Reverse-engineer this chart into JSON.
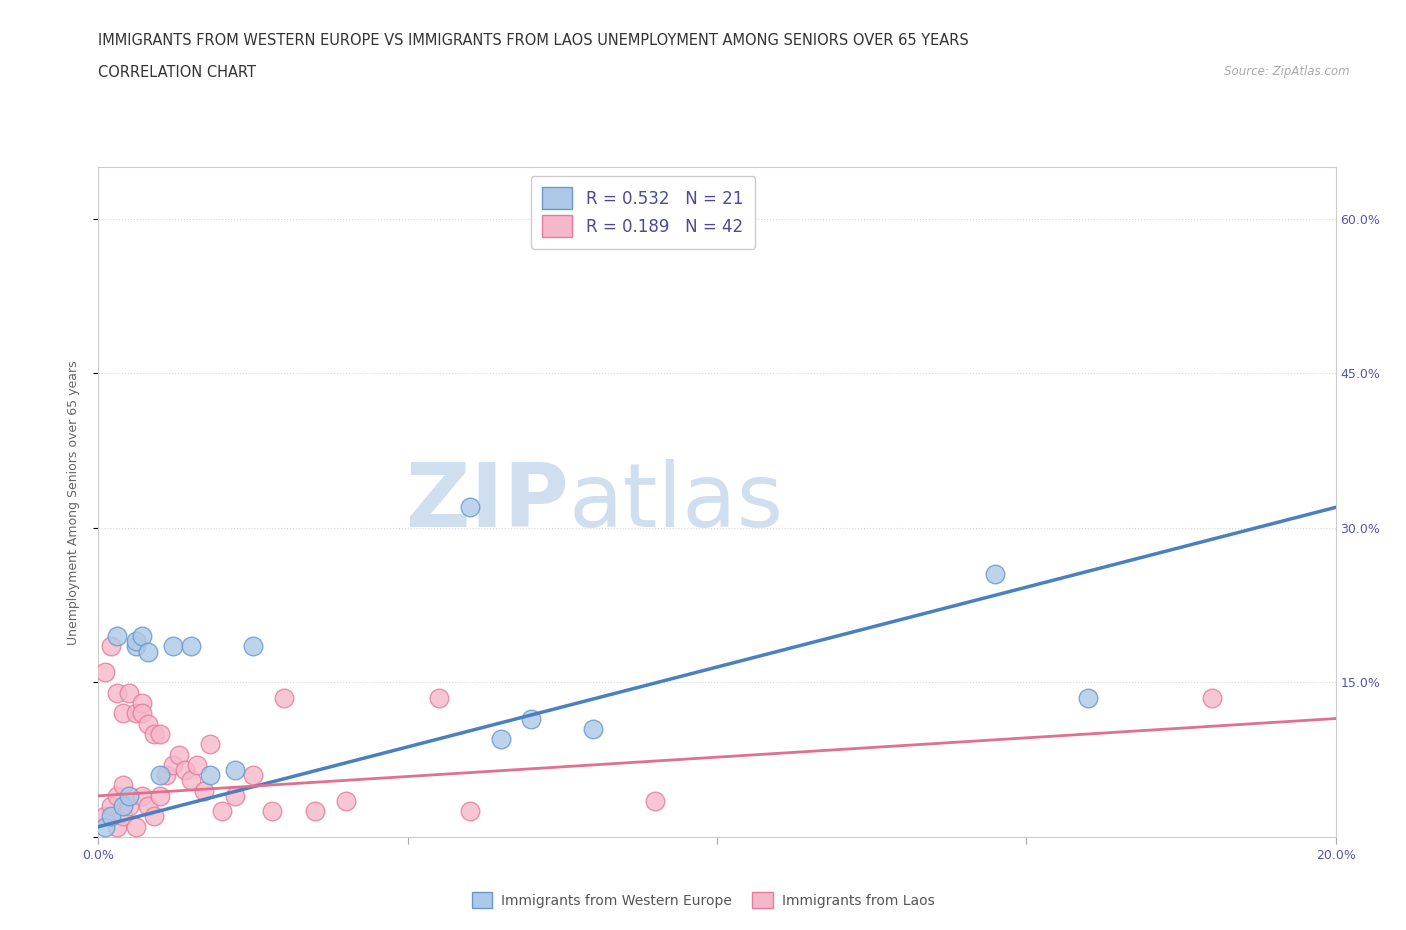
{
  "title_line1": "IMMIGRANTS FROM WESTERN EUROPE VS IMMIGRANTS FROM LAOS UNEMPLOYMENT AMONG SENIORS OVER 65 YEARS",
  "title_line2": "CORRELATION CHART",
  "source_text": "Source: ZipAtlas.com",
  "ylabel": "Unemployment Among Seniors over 65 years",
  "xlim": [
    0.0,
    0.2
  ],
  "ylim": [
    0.0,
    0.65
  ],
  "xticks": [
    0.0,
    0.05,
    0.1,
    0.15,
    0.2
  ],
  "xticklabels": [
    "0.0%",
    "",
    "",
    "",
    "20.0%"
  ],
  "yticks": [
    0.0,
    0.15,
    0.3,
    0.45,
    0.6
  ],
  "ytick_right_labels": [
    "",
    "15.0%",
    "30.0%",
    "45.0%",
    "60.0%"
  ],
  "r_blue": 0.532,
  "n_blue": 21,
  "r_pink": 0.189,
  "n_pink": 42,
  "blue_fill_color": "#adc8e8",
  "pink_fill_color": "#f5b8ca",
  "blue_edge_color": "#6699cc",
  "pink_edge_color": "#e87a9a",
  "blue_line_color": "#4a7fc0",
  "pink_line_color": "#e07090",
  "watermark_color": "#d0dff0",
  "blue_scatter_x": [
    0.001,
    0.002,
    0.003,
    0.004,
    0.005,
    0.006,
    0.006,
    0.007,
    0.008,
    0.01,
    0.012,
    0.015,
    0.018,
    0.022,
    0.025,
    0.06,
    0.065,
    0.07,
    0.08,
    0.145,
    0.16
  ],
  "blue_scatter_y": [
    0.01,
    0.02,
    0.195,
    0.03,
    0.04,
    0.185,
    0.19,
    0.195,
    0.18,
    0.06,
    0.185,
    0.185,
    0.06,
    0.065,
    0.185,
    0.32,
    0.095,
    0.115,
    0.105,
    0.255,
    0.135
  ],
  "pink_scatter_x": [
    0.001,
    0.001,
    0.002,
    0.002,
    0.003,
    0.003,
    0.003,
    0.004,
    0.004,
    0.004,
    0.005,
    0.005,
    0.006,
    0.006,
    0.007,
    0.007,
    0.007,
    0.008,
    0.008,
    0.009,
    0.009,
    0.01,
    0.01,
    0.011,
    0.012,
    0.013,
    0.014,
    0.015,
    0.016,
    0.017,
    0.018,
    0.02,
    0.022,
    0.025,
    0.028,
    0.03,
    0.035,
    0.04,
    0.055,
    0.06,
    0.09,
    0.18
  ],
  "pink_scatter_y": [
    0.02,
    0.16,
    0.03,
    0.185,
    0.01,
    0.04,
    0.14,
    0.02,
    0.05,
    0.12,
    0.14,
    0.03,
    0.01,
    0.12,
    0.13,
    0.04,
    0.12,
    0.03,
    0.11,
    0.02,
    0.1,
    0.04,
    0.1,
    0.06,
    0.07,
    0.08,
    0.065,
    0.055,
    0.07,
    0.045,
    0.09,
    0.025,
    0.04,
    0.06,
    0.025,
    0.135,
    0.025,
    0.035,
    0.135,
    0.025,
    0.035,
    0.135
  ],
  "blue_trend_x": [
    0.0,
    0.2
  ],
  "blue_trend_y": [
    0.01,
    0.32
  ],
  "pink_trend_x": [
    0.0,
    0.2
  ],
  "pink_trend_y": [
    0.04,
    0.115
  ],
  "background_color": "#ffffff",
  "grid_color": "#d8d8d8",
  "title_fontsize": 10.5,
  "axis_label_fontsize": 9,
  "tick_fontsize": 9,
  "legend_fontsize": 12
}
